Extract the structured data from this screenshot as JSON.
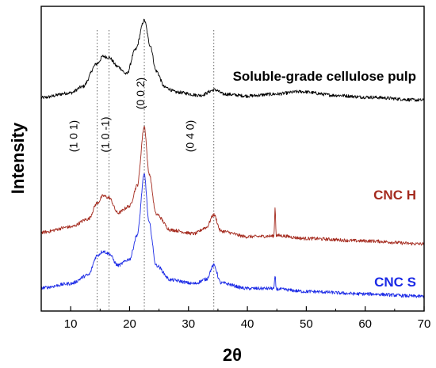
{
  "chart_data": {
    "type": "line",
    "xlabel": "2θ",
    "ylabel": "Intensity",
    "xlim": [
      5,
      70
    ],
    "xticks": [
      10,
      20,
      30,
      40,
      50,
      60,
      70
    ],
    "y_ticks_shown": false,
    "grid": false,
    "legend": "none (series labelled directly on the curves)",
    "series": [
      {
        "name": "Soluble-grade cellulose pulp",
        "color": "#000000",
        "points": [
          [
            5,
            0.7
          ],
          [
            10,
            0.716
          ],
          [
            12,
            0.736
          ],
          [
            14.5,
            0.812
          ],
          [
            15.5,
            0.836
          ],
          [
            16.5,
            0.832
          ],
          [
            18,
            0.802
          ],
          [
            19.5,
            0.778
          ],
          [
            21,
            0.858
          ],
          [
            22.5,
            0.954
          ],
          [
            23.5,
            0.872
          ],
          [
            24.5,
            0.788
          ],
          [
            26,
            0.734
          ],
          [
            28,
            0.718
          ],
          [
            32,
            0.708
          ],
          [
            34.5,
            0.726
          ],
          [
            36,
            0.712
          ],
          [
            40,
            0.706
          ],
          [
            44.7,
            0.712
          ],
          [
            49,
            0.72
          ],
          [
            55,
            0.708
          ],
          [
            60,
            0.702
          ],
          [
            70,
            0.692
          ]
        ]
      },
      {
        "name": "CNC H",
        "color": "#a42a1e",
        "points": [
          [
            5,
            0.258
          ],
          [
            10,
            0.276
          ],
          [
            13,
            0.302
          ],
          [
            14.5,
            0.354
          ],
          [
            15.5,
            0.378
          ],
          [
            16.5,
            0.372
          ],
          [
            18,
            0.322
          ],
          [
            20,
            0.344
          ],
          [
            21.3,
            0.412
          ],
          [
            22.5,
            0.606
          ],
          [
            23.3,
            0.452
          ],
          [
            24.5,
            0.318
          ],
          [
            27,
            0.266
          ],
          [
            31,
            0.254
          ],
          [
            33,
            0.274
          ],
          [
            34.3,
            0.316
          ],
          [
            35.5,
            0.262
          ],
          [
            40,
            0.244
          ],
          [
            44.5,
            0.246
          ],
          [
            44.7,
            0.338
          ],
          [
            44.9,
            0.248
          ],
          [
            50,
            0.238
          ],
          [
            60,
            0.23
          ],
          [
            70,
            0.22
          ]
        ]
      },
      {
        "name": "CNC S",
        "color": "#1b2ae6",
        "points": [
          [
            5,
            0.076
          ],
          [
            10,
            0.09
          ],
          [
            13,
            0.118
          ],
          [
            14.5,
            0.182
          ],
          [
            15.5,
            0.196
          ],
          [
            16.5,
            0.188
          ],
          [
            18,
            0.15
          ],
          [
            20,
            0.17
          ],
          [
            21.3,
            0.25
          ],
          [
            22.5,
            0.448
          ],
          [
            23.3,
            0.29
          ],
          [
            24.5,
            0.15
          ],
          [
            27,
            0.102
          ],
          [
            31,
            0.09
          ],
          [
            33,
            0.104
          ],
          [
            34.3,
            0.15
          ],
          [
            35.5,
            0.092
          ],
          [
            40,
            0.074
          ],
          [
            44.5,
            0.074
          ],
          [
            44.7,
            0.114
          ],
          [
            44.9,
            0.072
          ],
          [
            50,
            0.064
          ],
          [
            60,
            0.056
          ],
          [
            70,
            0.048
          ]
        ]
      }
    ],
    "reference_lines_x": [
      14.5,
      16.5,
      22.5,
      34.3
    ],
    "peak_labels": [
      {
        "text": "(1 0 1)",
        "x": 14.5
      },
      {
        "text": "(1 0 -1)",
        "x": 16.5
      },
      {
        "text": "(0 0 2)",
        "x": 22.5
      },
      {
        "text": "(0 4 0)",
        "x": 34.3
      }
    ]
  }
}
